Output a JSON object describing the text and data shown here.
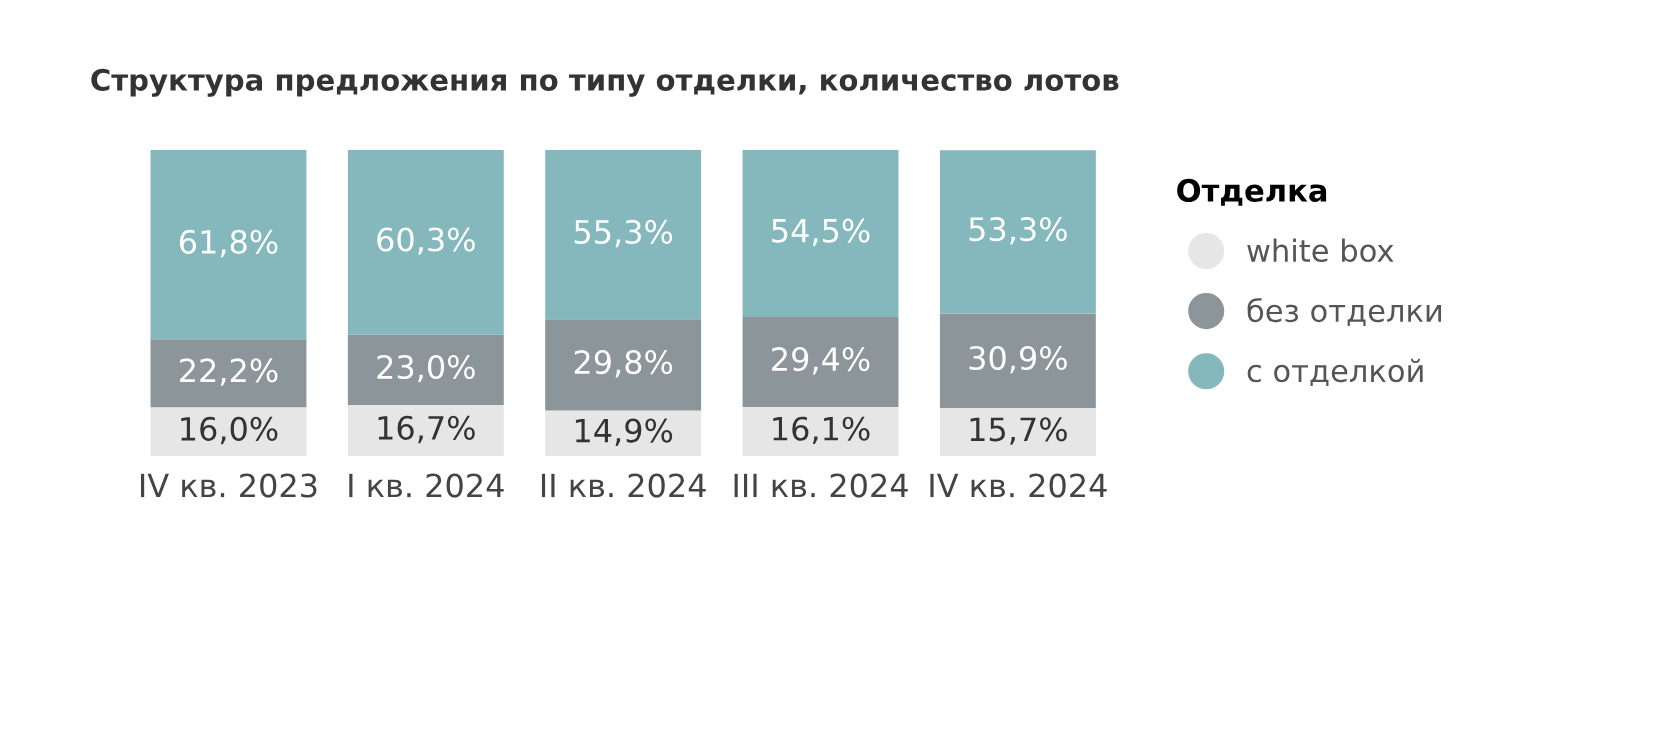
{
  "chart_data": {
    "type": "bar",
    "stacked": true,
    "tick_labels": "x",
    "title": "Структура предложения по типу отделки, количество лотов",
    "categories": [
      "IV кв. 2023",
      "I кв. 2024",
      "II кв. 2024",
      "III кв. 2024",
      "IV кв. 2024"
    ],
    "series": [
      {
        "name": "white box",
        "color": "#e6e6e6",
        "values": [
          16.0,
          16.7,
          14.9,
          16.1,
          15.7
        ],
        "value_labels": [
          "16,0%",
          "16,7%",
          "14,9%",
          "16,1%",
          "15,7%"
        ]
      },
      {
        "name": "без отделки",
        "color": "#8c9599",
        "values": [
          22.2,
          23.0,
          29.8,
          29.4,
          30.9
        ],
        "value_labels": [
          "22,2%",
          "23,0%",
          "29,8%",
          "29,4%",
          "30,9%"
        ]
      },
      {
        "name": "с отделкой",
        "color": "#84b8bd",
        "values": [
          61.8,
          60.3,
          55.3,
          54.5,
          53.3
        ],
        "value_labels": [
          "61,8%",
          "60,3%",
          "55,3%",
          "54,5%",
          "53,3%"
        ]
      }
    ],
    "legend": "right",
    "legend_title": "Отделка",
    "marker": "circle",
    "grid": false
  }
}
